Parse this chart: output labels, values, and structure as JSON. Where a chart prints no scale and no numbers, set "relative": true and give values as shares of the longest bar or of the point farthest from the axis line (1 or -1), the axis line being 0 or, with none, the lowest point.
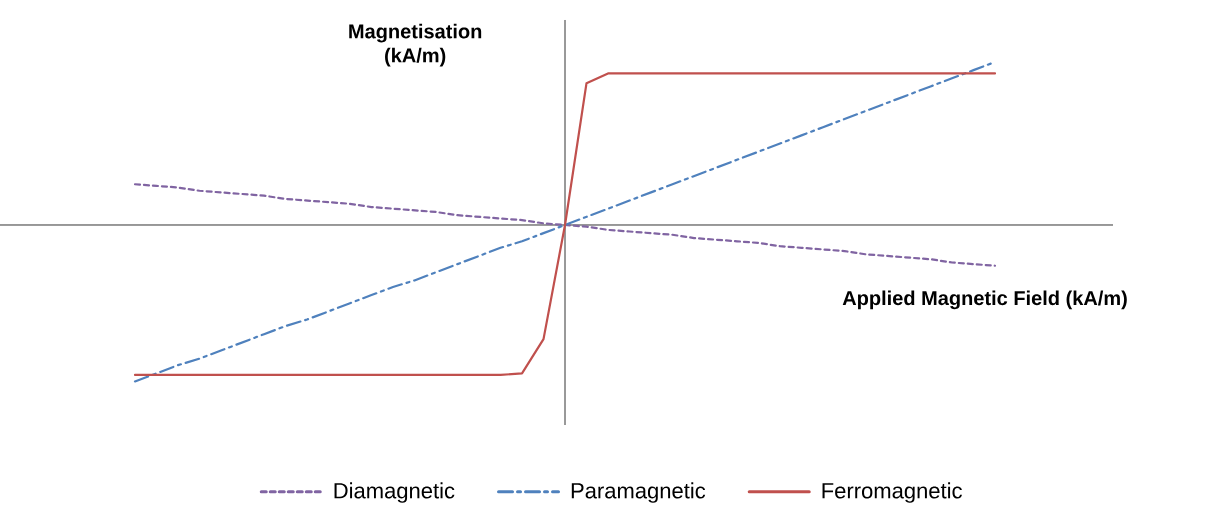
{
  "chart_data": {
    "type": "line",
    "relative": true,
    "xlabel": "Applied Magnetic Field (kA/m)",
    "ylabel": "Magnetisation (kA/m)",
    "legend": "bottom",
    "marker": "none",
    "categories": [
      null,
      null,
      null,
      null,
      null,
      null,
      null,
      null,
      null,
      null,
      null,
      null,
      null,
      null,
      null,
      null,
      null,
      null,
      null,
      null,
      null,
      null,
      null,
      null,
      null,
      null,
      null,
      null,
      null,
      null,
      null,
      null,
      null,
      null,
      null,
      null,
      null,
      null,
      null,
      null,
      null
    ],
    "series": [
      {
        "name": "Diamagnetic",
        "color": "#8064a2",
        "line_style": "dashed",
        "values": [
          0.25,
          0.24,
          0.23,
          0.21,
          0.2,
          0.19,
          0.18,
          0.16,
          0.15,
          0.14,
          0.13,
          0.11,
          0.1,
          0.09,
          0.08,
          0.06,
          0.05,
          0.04,
          0.03,
          0.01,
          0,
          -0.01,
          -0.03,
          -0.04,
          -0.05,
          -0.06,
          -0.08,
          -0.09,
          -0.1,
          -0.11,
          -0.13,
          -0.14,
          -0.15,
          -0.16,
          -0.18,
          -0.19,
          -0.2,
          -0.21,
          -0.23,
          -0.24,
          -0.25
        ]
      },
      {
        "name": "Paramagnetic",
        "color": "#4f81bd",
        "line_style": "dashdot",
        "values": [
          -0.96,
          -0.91,
          -0.86,
          -0.82,
          -0.77,
          -0.72,
          -0.67,
          -0.62,
          -0.58,
          -0.53,
          -0.48,
          -0.43,
          -0.38,
          -0.34,
          -0.29,
          -0.24,
          -0.19,
          -0.14,
          -0.1,
          -0.05,
          0,
          0.05,
          0.1,
          0.15,
          0.2,
          0.25,
          0.3,
          0.35,
          0.4,
          0.45,
          0.5,
          0.55,
          0.6,
          0.65,
          0.7,
          0.75,
          0.8,
          0.85,
          0.9,
          0.95,
          1
        ]
      },
      {
        "name": "Ferromagnetic",
        "color": "#c0504d",
        "line_style": "solid",
        "values": [
          -0.92,
          -0.92,
          -0.92,
          -0.92,
          -0.92,
          -0.92,
          -0.92,
          -0.92,
          -0.92,
          -0.92,
          -0.92,
          -0.92,
          -0.92,
          -0.92,
          -0.92,
          -0.92,
          -0.92,
          -0.92,
          -0.91,
          -0.7,
          0,
          0.87,
          0.93,
          0.93,
          0.93,
          0.93,
          0.93,
          0.93,
          0.93,
          0.93,
          0.93,
          0.93,
          0.93,
          0.93,
          0.93,
          0.93,
          0.93,
          0.93,
          0.93,
          0.93,
          0.93
        ]
      }
    ]
  }
}
